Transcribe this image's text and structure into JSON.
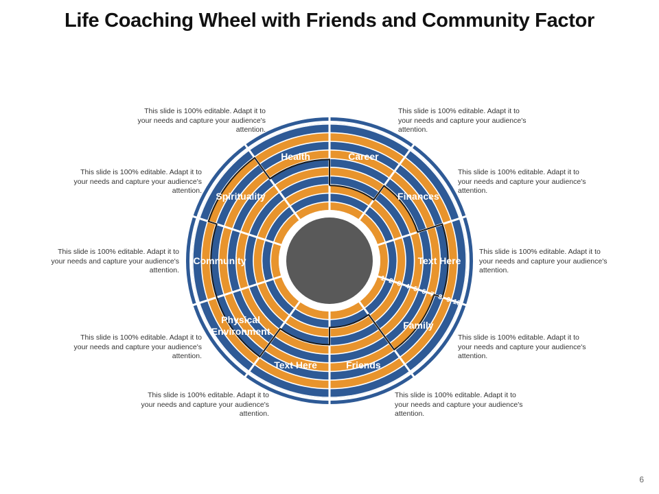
{
  "title": "Life Coaching Wheel with Friends and Community Factor",
  "slide_number": "6",
  "colors": {
    "outer_ring": "#2e5a96",
    "ring_orange": "#e8942d",
    "ring_blue": "#2e5a96",
    "center_disc": "#595959",
    "divider": "#ffffff",
    "score_line": "#1a1a1a",
    "label_text": "#ffffff"
  },
  "scale_numbers": [
    "1",
    "2",
    "3",
    "4",
    "5",
    "6",
    "7",
    "8",
    "9",
    "10"
  ],
  "segments": [
    {
      "label": "Career",
      "score": 3
    },
    {
      "label": "Finances",
      "score": 5
    },
    {
      "label": "Text Here",
      "score": 8
    },
    {
      "label": "Family",
      "score": 7
    },
    {
      "label": "Friends",
      "score": 2
    },
    {
      "label": "Text Here",
      "score": 4
    },
    {
      "label": "Physical Environment",
      "score": 8
    },
    {
      "label": "Community",
      "score": 8
    },
    {
      "label": "Spirituality",
      "score": 9
    },
    {
      "label": "Health",
      "score": 6
    }
  ],
  "descriptions": [
    {
      "id": "career",
      "text": "This slide is 100% editable. Adapt it to your needs and capture your audience's attention."
    },
    {
      "id": "finances",
      "text": "This slide is 100% editable. Adapt it to your needs and capture your audience's attention."
    },
    {
      "id": "text-here-1",
      "text": "This slide is 100% editable. Adapt it to your needs and capture your audience's attention."
    },
    {
      "id": "family",
      "text": "This slide is 100% editable. Adapt it to your needs and capture your audience's attention."
    },
    {
      "id": "friends",
      "text": "This slide is 100% editable. Adapt it to your needs and capture your audience's attention."
    },
    {
      "id": "text-here-2",
      "text": "This slide is 100% editable. Adapt it to your needs and capture your audience's attention."
    },
    {
      "id": "physical-environment",
      "text": "This slide is 100% editable. Adapt it to your needs and capture your audience's attention."
    },
    {
      "id": "community",
      "text": "This slide is 100% editable. Adapt it to your needs and capture your audience's attention."
    },
    {
      "id": "spirituality",
      "text": "This slide is 100% editable. Adapt it to your needs and capture your audience's attention."
    },
    {
      "id": "health",
      "text": "This slide is 100% editable. Adapt it to your needs and capture your audience's attention."
    }
  ]
}
